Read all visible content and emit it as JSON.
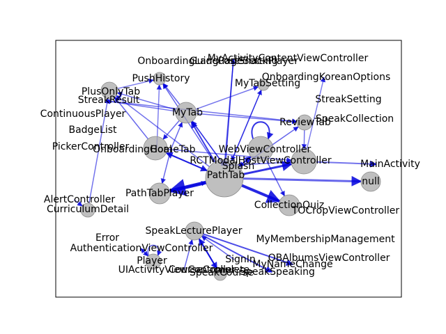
{
  "colors": {
    "edge": "#0000dd",
    "node_fill": "#a9a9a9",
    "node_stroke": "#8c8c8c",
    "frame": "#000000",
    "label": "#000000"
  },
  "nodes": [
    {
      "id": "n1",
      "label": "OnboardingLanguageSetting"
    },
    {
      "id": "n2",
      "label": "MyActivityContentViewController"
    },
    {
      "id": "n3",
      "label": "GuidePostSnackPlayer"
    },
    {
      "id": "n4",
      "label": "PushHistory"
    },
    {
      "id": "n5",
      "label": "MyTabSetting"
    },
    {
      "id": "n6",
      "label": "OnboardingKoreanOptions"
    },
    {
      "id": "n7",
      "label": "PlusOnlyTab"
    },
    {
      "id": "n8",
      "label": "StreakResult"
    },
    {
      "id": "n9",
      "label": "ContinuousPlayer"
    },
    {
      "id": "n10",
      "label": "StreakSetting"
    },
    {
      "id": "n11",
      "label": "MyTab"
    },
    {
      "id": "n12",
      "label": "SpeakCollection"
    },
    {
      "id": "n13",
      "label": "ReviewTab"
    },
    {
      "id": "n14",
      "label": "BadgeList"
    },
    {
      "id": "n15",
      "label": "PickerController"
    },
    {
      "id": "n16",
      "label": "OnboardingGoal"
    },
    {
      "id": "n17",
      "label": "HomeTab"
    },
    {
      "id": "n18",
      "label": "WebViewController"
    },
    {
      "id": "n19",
      "label": "RCTModalHostViewController"
    },
    {
      "id": "n20",
      "label": "MainActivity"
    },
    {
      "id": "n21",
      "label": "Splash"
    },
    {
      "id": "n22",
      "label": "PathTab"
    },
    {
      "id": "n23",
      "label": "null"
    },
    {
      "id": "n24",
      "label": "PathTabPlayer"
    },
    {
      "id": "n25",
      "label": "CollectionQuiz"
    },
    {
      "id": "n26",
      "label": "TOCropViewController"
    },
    {
      "id": "n27",
      "label": "AlertController"
    },
    {
      "id": "n28",
      "label": "CurriculumDetail"
    },
    {
      "id": "n29",
      "label": "SpeakLecturePlayer"
    },
    {
      "id": "n30",
      "label": "MyMembershipManagement"
    },
    {
      "id": "n31",
      "label": "Error"
    },
    {
      "id": "n32",
      "label": "AuthenticationViewController"
    },
    {
      "id": "n33",
      "label": "OBAlbumsViewController"
    },
    {
      "id": "n34",
      "label": "Player"
    },
    {
      "id": "n35",
      "label": "SignIn"
    },
    {
      "id": "n36",
      "label": "MyNameChange"
    },
    {
      "id": "n37",
      "label": "UIActivityViewController"
    },
    {
      "id": "n38",
      "label": "CourseComplete"
    },
    {
      "id": "n39",
      "label": "SpeakCourse"
    },
    {
      "id": "n40",
      "label": "SpeakSpeaking"
    }
  ]
}
